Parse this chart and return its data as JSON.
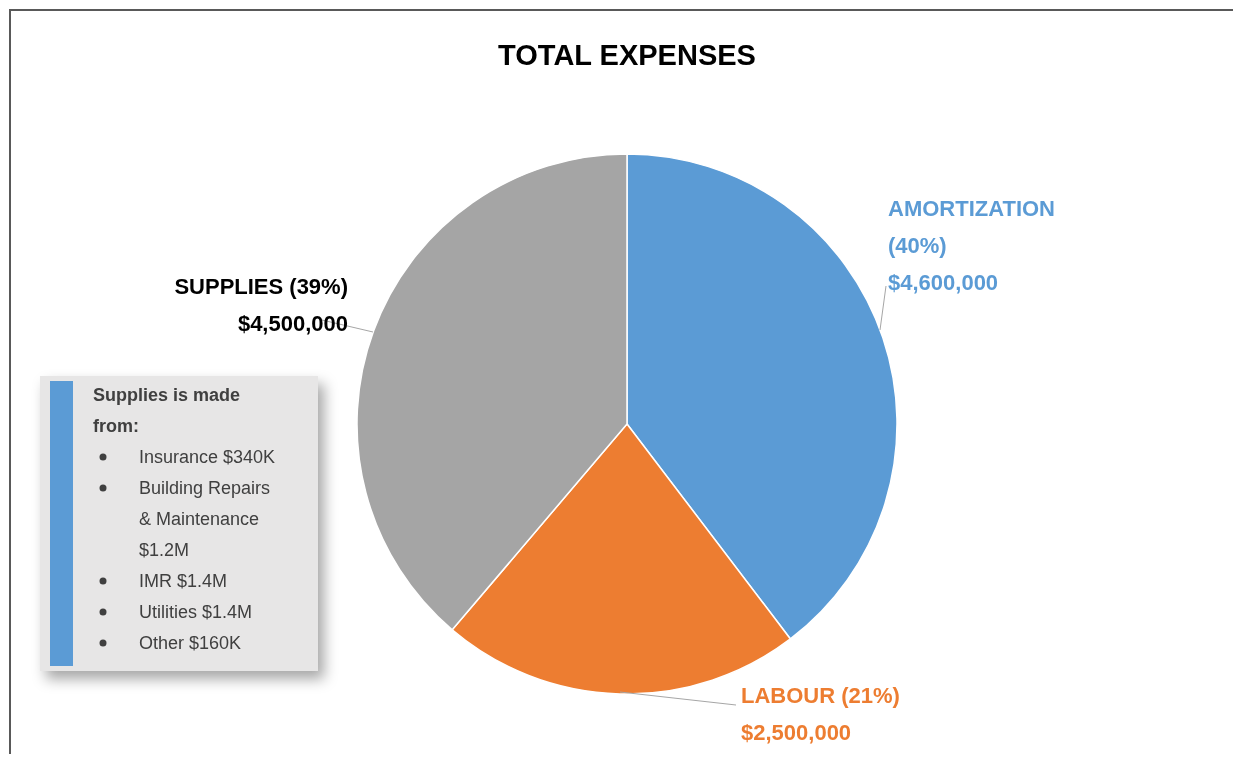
{
  "chart_data": {
    "type": "pie",
    "title": "TOTAL EXPENSES",
    "categories": [
      "AMORTIZATION",
      "LABOUR",
      "SUPPLIES"
    ],
    "values": [
      4600000,
      2500000,
      4500000
    ],
    "colors": [
      "#5b9bd5",
      "#ed7d31",
      "#a5a5a5"
    ],
    "value_labels": [
      "(40%) $4,600,000",
      "(21%) $2,500,000",
      "(39%) $4,500,000"
    ],
    "annotations": [
      "Supplies is made from:",
      "Insurance $340K",
      "Building Repairs & Maintenance $1.2M",
      "IMR $1.4M",
      "Utilities $1.4M",
      "Other $160K"
    ]
  }
}
